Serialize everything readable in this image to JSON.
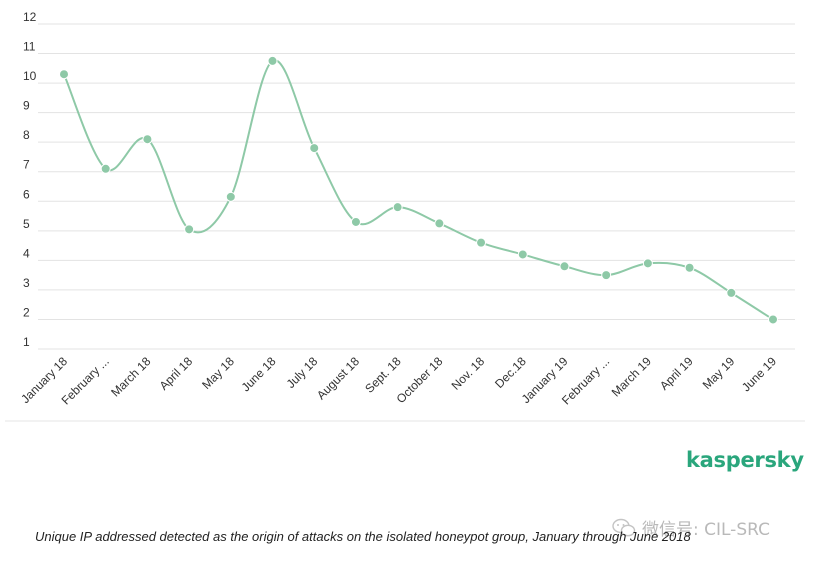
{
  "chart_data": {
    "type": "line",
    "categories": [
      "January 18",
      "February ...",
      "March 18",
      "April 18",
      "May 18",
      "June 18",
      "July 18",
      "August 18",
      "Sept. 18",
      "October 18",
      "Nov. 18",
      "Dec.18",
      "January 19",
      "February ...",
      "March 19",
      "April 19",
      "May 19",
      "June 19"
    ],
    "series": [
      {
        "values": [
          10.3,
          7.1,
          8.1,
          5.05,
          6.15,
          10.75,
          7.8,
          5.3,
          5.8,
          5.25,
          4.6,
          4.2,
          3.8,
          3.5,
          3.9,
          3.75,
          2.9,
          2.0
        ]
      }
    ],
    "y_ticks": [
      "1",
      "2",
      "3",
      "4",
      "5",
      "6",
      "7",
      "8",
      "9",
      "10",
      "11",
      "12"
    ],
    "ylim": [
      1,
      12
    ],
    "grid": true,
    "line_color": "#8ec9a7",
    "title": "",
    "xlabel": "",
    "ylabel": ""
  },
  "brand": {
    "text": "kaspersky",
    "color": "#2aa67c"
  },
  "caption": "Unique IP addressed detected as the origin of attacks on the isolated honeypot group, January through June 2018",
  "watermark": {
    "text": "微信号: CIL-SRC",
    "icon": "wechat-icon"
  }
}
